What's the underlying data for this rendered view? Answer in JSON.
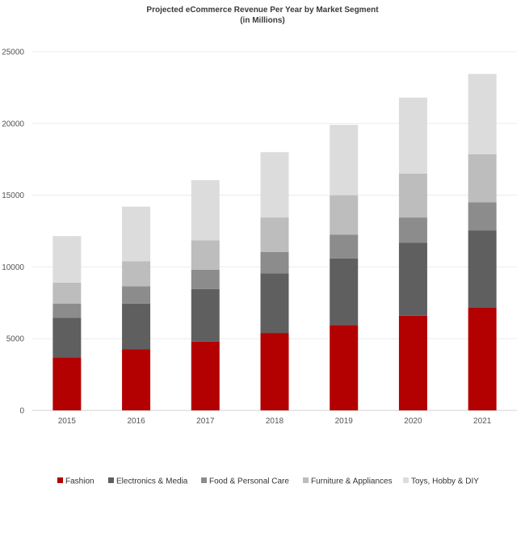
{
  "chart_data": {
    "type": "bar",
    "stacked": true,
    "title": "Projected eCommerce Revenue Per Year by Market Segment",
    "subtitle": "(in Millions)",
    "xlabel": "",
    "ylabel": "",
    "categories": [
      "2015",
      "2016",
      "2017",
      "2018",
      "2019",
      "2020",
      "2021"
    ],
    "ylim": [
      0,
      25000
    ],
    "yticks": [
      0,
      5000,
      10000,
      15000,
      20000,
      25000
    ],
    "grid": true,
    "legend_position": "bottom",
    "series": [
      {
        "name": "Fashion",
        "color": "#b30000",
        "values": [
          3700,
          4250,
          4800,
          5400,
          5950,
          6600,
          7150
        ]
      },
      {
        "name": "Electronics & Media",
        "color": "#5f5f5f",
        "values": [
          2750,
          3200,
          3650,
          4150,
          4650,
          5100,
          5400
        ]
      },
      {
        "name": "Food & Personal Care",
        "color": "#8c8c8c",
        "values": [
          1000,
          1200,
          1350,
          1500,
          1650,
          1750,
          1950
        ]
      },
      {
        "name": "Furniture & Appliances",
        "color": "#bdbdbd",
        "values": [
          1450,
          1750,
          2050,
          2400,
          2750,
          3050,
          3350
        ]
      },
      {
        "name": "Toys, Hobby & DIY",
        "color": "#dcdcdc",
        "values": [
          3250,
          3800,
          4200,
          4550,
          4900,
          5300,
          5600
        ]
      }
    ]
  }
}
